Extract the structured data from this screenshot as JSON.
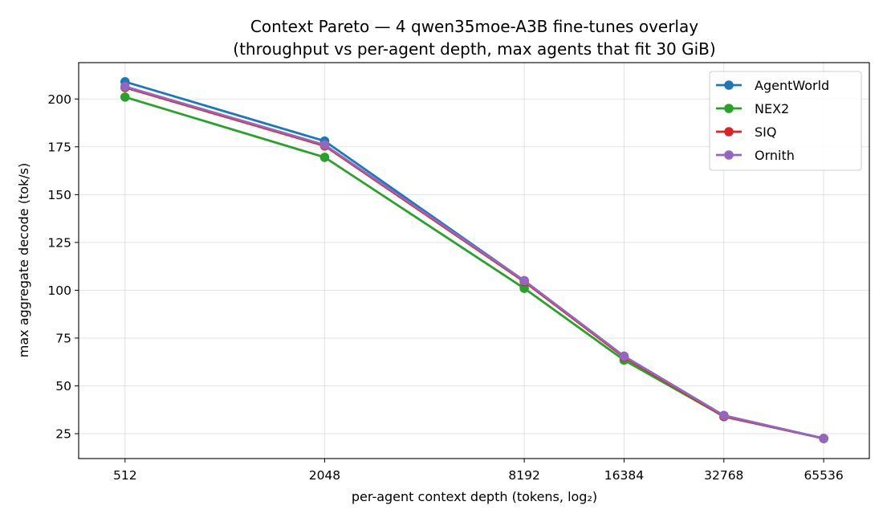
{
  "chart_data": {
    "type": "line",
    "title": "Context Pareto — 4 qwen35moe-A3B fine-tunes overlay",
    "subtitle": "(throughput vs per-agent depth, max agents that fit 30 GiB)",
    "xlabel": "per-agent context depth (tokens, log₂)",
    "ylabel": "max aggregate decode (tok/s)",
    "x_scale": "log2",
    "x": [
      512,
      2048,
      8192,
      16384,
      32768,
      65536
    ],
    "x_tick_labels": [
      "512",
      "2048",
      "8192",
      "16384",
      "32768",
      "65536"
    ],
    "xlim": [
      371,
      90000
    ],
    "y_ticks": [
      25,
      50,
      75,
      100,
      125,
      150,
      175,
      200
    ],
    "y_tick_labels": [
      "25",
      "50",
      "75",
      "100",
      "125",
      "150",
      "175",
      "200"
    ],
    "ylim": [
      12,
      219
    ],
    "grid": true,
    "legend_position": "top-right",
    "series": [
      {
        "name": "AgentWorld",
        "color": "#1f77b4",
        "values": [
          209,
          178,
          105,
          65.5,
          34.5,
          22.5
        ]
      },
      {
        "name": "NEX2",
        "color": "#2ca02c",
        "values": [
          201,
          169.5,
          101,
          63.5,
          34,
          22.5
        ]
      },
      {
        "name": "SIQ",
        "color": "#d62728",
        "values": [
          206,
          175.5,
          104.5,
          65,
          34,
          22.5
        ]
      },
      {
        "name": "Ornith",
        "color": "#9467bd",
        "values": [
          206.5,
          176,
          105,
          65.5,
          34.5,
          22.5
        ]
      }
    ]
  }
}
